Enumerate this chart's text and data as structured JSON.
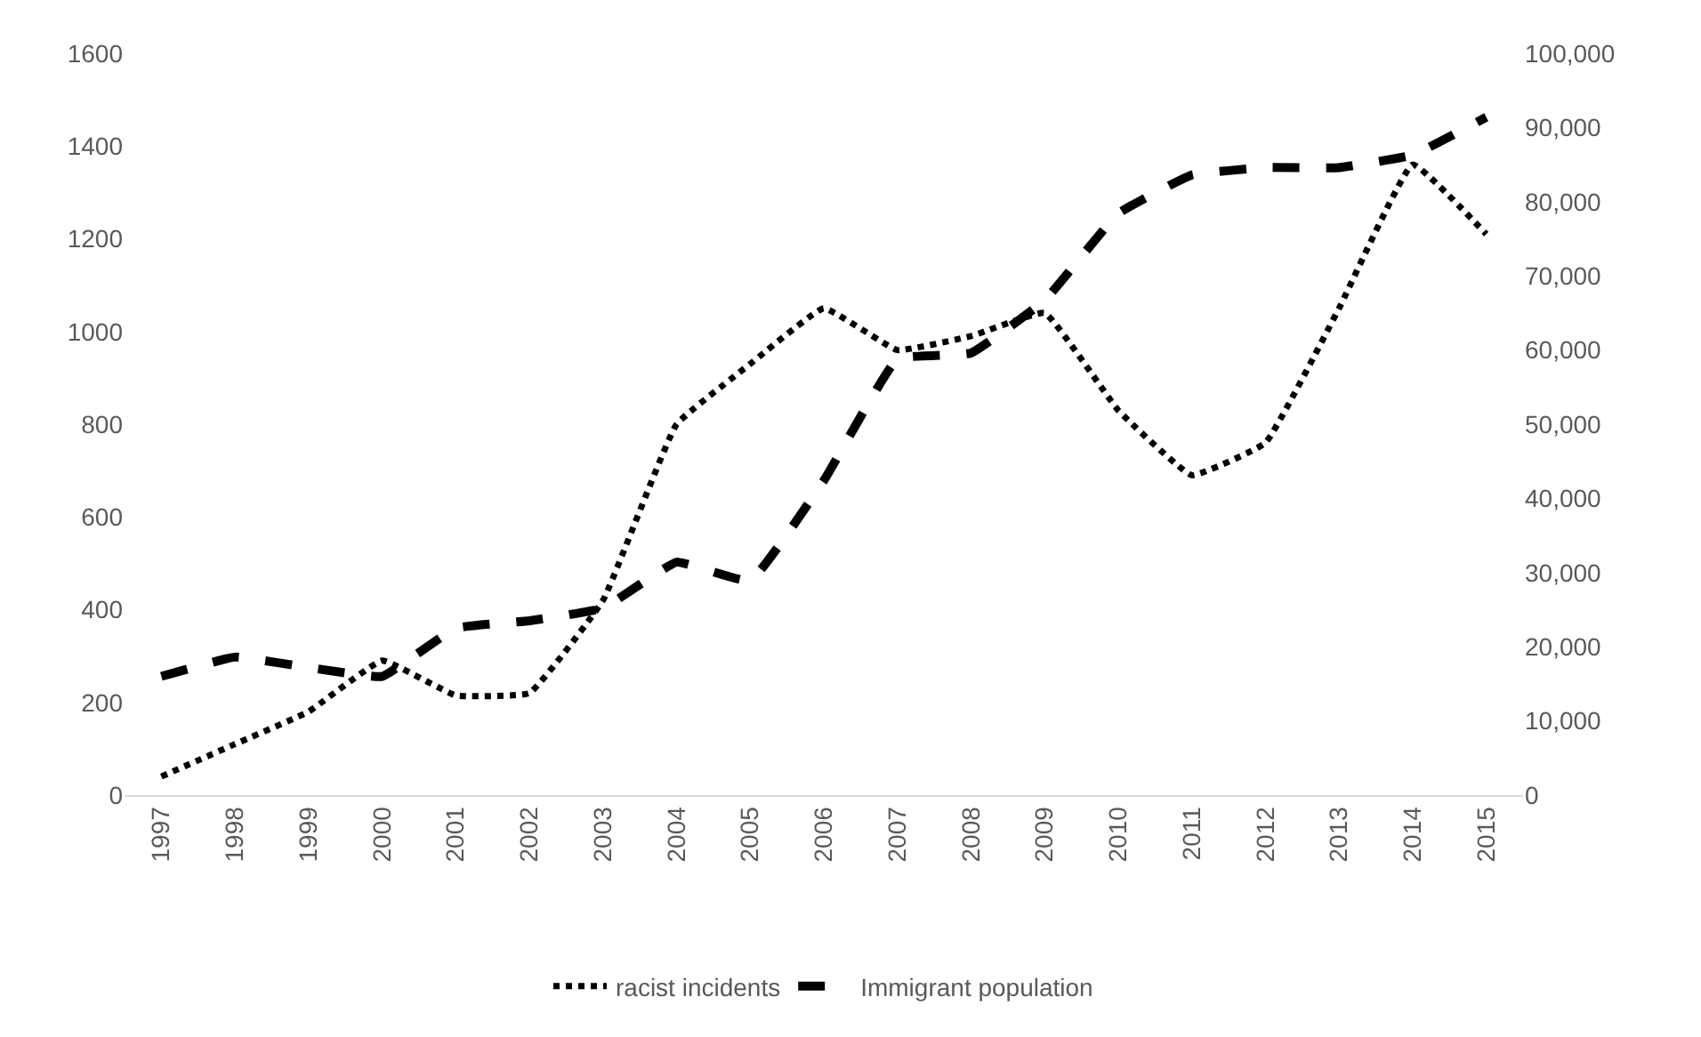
{
  "chart_data": {
    "type": "line",
    "categories": [
      "1997",
      "1998",
      "1999",
      "2000",
      "2001",
      "2002",
      "2003",
      "2004",
      "2005",
      "2006",
      "2007",
      "2008",
      "2009",
      "2010",
      "2011",
      "2012",
      "2013",
      "2014",
      "2015"
    ],
    "series": [
      {
        "name": "racist incidents",
        "color": "#000000",
        "line_style": "dotted",
        "values": [
          40,
          110,
          180,
          290,
          215,
          220,
          420,
          800,
          930,
          1050,
          960,
          990,
          1040,
          830,
          690,
          760,
          1050,
          1360,
          1210
        ]
      },
      {
        "name": "Immigrant population",
        "color": "#000000",
        "line_style": "dashed",
        "axis": "y2",
        "values": [
          16000,
          18600,
          17200,
          16000,
          22500,
          23500,
          25200,
          31400,
          28900,
          42400,
          58800,
          59600,
          66700,
          78400,
          83600,
          84600,
          84600,
          86300,
          91400
        ]
      }
    ],
    "ylim": [
      0,
      1600
    ],
    "yticks": [
      0,
      200,
      400,
      600,
      800,
      1000,
      1200,
      1400,
      1600
    ],
    "y2lim": [
      0,
      100000
    ],
    "y2ticks": [
      0,
      {
        "value": 10000,
        "label": "10,000"
      },
      {
        "value": 20000,
        "label": "20,000"
      },
      {
        "value": 30000,
        "label": "30,000"
      },
      {
        "value": 40000,
        "label": "40,000"
      },
      {
        "value": 50000,
        "label": "50,000"
      },
      {
        "value": 60000,
        "label": "60,000"
      },
      {
        "value": 70000,
        "label": "70,000"
      },
      {
        "value": 80000,
        "label": "80,000"
      },
      {
        "value": 90000,
        "label": "90,000"
      },
      {
        "value": 100000,
        "label": "100,000"
      }
    ],
    "grid": false,
    "legend": "bottom",
    "marker": "none"
  }
}
